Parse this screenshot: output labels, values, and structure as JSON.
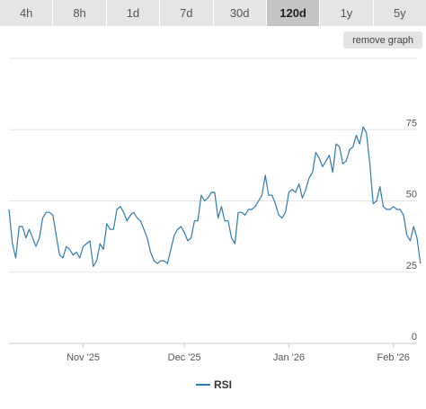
{
  "timeframe_tabs": [
    {
      "label": "4h",
      "active": false
    },
    {
      "label": "8h",
      "active": false
    },
    {
      "label": "1d",
      "active": false
    },
    {
      "label": "7d",
      "active": false
    },
    {
      "label": "30d",
      "active": false
    },
    {
      "label": "120d",
      "active": true
    },
    {
      "label": "1y",
      "active": false
    },
    {
      "label": "5y",
      "active": false
    }
  ],
  "remove_graph_label": "remove graph",
  "colors": {
    "series": "#2f7ab0",
    "grid": "#e6e6e6",
    "axis": "#cccccc"
  },
  "chart_data": {
    "type": "line",
    "ylim": [
      0,
      100
    ],
    "yticks": [
      0,
      25,
      50,
      75
    ],
    "x_range": [
      "2025-10-10",
      "2026-02-08"
    ],
    "xticks": [
      {
        "label": "Nov '25",
        "date": "2025-11-01"
      },
      {
        "label": "Dec '25",
        "date": "2025-12-01"
      },
      {
        "label": "Jan '26",
        "date": "2026-01-01"
      },
      {
        "label": "Feb '26",
        "date": "2026-02-01"
      }
    ],
    "legend": "bottom-center",
    "series": [
      {
        "name": "RSI",
        "points": [
          [
            "2025-10-10",
            47
          ],
          [
            "2025-10-11",
            35
          ],
          [
            "2025-10-12",
            30
          ],
          [
            "2025-10-13",
            41
          ],
          [
            "2025-10-14",
            41
          ],
          [
            "2025-10-15",
            37
          ],
          [
            "2025-10-16",
            40
          ],
          [
            "2025-10-17",
            37
          ],
          [
            "2025-10-18",
            34
          ],
          [
            "2025-10-19",
            37
          ],
          [
            "2025-10-20",
            44
          ],
          [
            "2025-10-21",
            46
          ],
          [
            "2025-10-22",
            46
          ],
          [
            "2025-10-23",
            45
          ],
          [
            "2025-10-24",
            38
          ],
          [
            "2025-10-25",
            31
          ],
          [
            "2025-10-26",
            30
          ],
          [
            "2025-10-27",
            34
          ],
          [
            "2025-10-28",
            33
          ],
          [
            "2025-10-29",
            31
          ],
          [
            "2025-10-30",
            32
          ],
          [
            "2025-10-31",
            30
          ],
          [
            "2025-11-01",
            34
          ],
          [
            "2025-11-02",
            35
          ],
          [
            "2025-11-03",
            36
          ],
          [
            "2025-11-04",
            27
          ],
          [
            "2025-11-05",
            29
          ],
          [
            "2025-11-06",
            35
          ],
          [
            "2025-11-07",
            33
          ],
          [
            "2025-11-08",
            42
          ],
          [
            "2025-11-09",
            40
          ],
          [
            "2025-11-10",
            40
          ],
          [
            "2025-11-11",
            47
          ],
          [
            "2025-11-12",
            48
          ],
          [
            "2025-11-13",
            46
          ],
          [
            "2025-11-14",
            43
          ],
          [
            "2025-11-15",
            45
          ],
          [
            "2025-11-16",
            46
          ],
          [
            "2025-11-17",
            44
          ],
          [
            "2025-11-18",
            43
          ],
          [
            "2025-11-19",
            40
          ],
          [
            "2025-11-20",
            37
          ],
          [
            "2025-11-21",
            32
          ],
          [
            "2025-11-22",
            29
          ],
          [
            "2025-11-23",
            28
          ],
          [
            "2025-11-24",
            29
          ],
          [
            "2025-11-25",
            29
          ],
          [
            "2025-11-26",
            28
          ],
          [
            "2025-11-27",
            33
          ],
          [
            "2025-11-28",
            38
          ],
          [
            "2025-11-29",
            40
          ],
          [
            "2025-11-30",
            41
          ],
          [
            "2025-12-01",
            39
          ],
          [
            "2025-12-02",
            36
          ],
          [
            "2025-12-03",
            37
          ],
          [
            "2025-12-04",
            43
          ],
          [
            "2025-12-05",
            43
          ],
          [
            "2025-12-06",
            52
          ],
          [
            "2025-12-07",
            50
          ],
          [
            "2025-12-08",
            51
          ],
          [
            "2025-12-09",
            53
          ],
          [
            "2025-12-10",
            53
          ],
          [
            "2025-12-11",
            44
          ],
          [
            "2025-12-12",
            48
          ],
          [
            "2025-12-13",
            43
          ],
          [
            "2025-12-14",
            43
          ],
          [
            "2025-12-15",
            37
          ],
          [
            "2025-12-16",
            35
          ],
          [
            "2025-12-17",
            46
          ],
          [
            "2025-12-18",
            46
          ],
          [
            "2025-12-19",
            45
          ],
          [
            "2025-12-20",
            47
          ],
          [
            "2025-12-21",
            47
          ],
          [
            "2025-12-22",
            48
          ],
          [
            "2025-12-23",
            50
          ],
          [
            "2025-12-24",
            52
          ],
          [
            "2025-12-25",
            59
          ],
          [
            "2025-12-26",
            52
          ],
          [
            "2025-12-27",
            52
          ],
          [
            "2025-12-28",
            49
          ],
          [
            "2025-12-29",
            45
          ],
          [
            "2025-12-30",
            44
          ],
          [
            "2025-12-31",
            46
          ],
          [
            "2026-01-01",
            53
          ],
          [
            "2026-01-02",
            54
          ],
          [
            "2026-01-03",
            53
          ],
          [
            "2026-01-04",
            56
          ],
          [
            "2026-01-05",
            51
          ],
          [
            "2026-01-06",
            54
          ],
          [
            "2026-01-07",
            58
          ],
          [
            "2026-01-08",
            60
          ],
          [
            "2026-01-09",
            67
          ],
          [
            "2026-01-10",
            65
          ],
          [
            "2026-01-11",
            62
          ],
          [
            "2026-01-12",
            64
          ],
          [
            "2026-01-13",
            66
          ],
          [
            "2026-01-14",
            60
          ],
          [
            "2026-01-15",
            70
          ],
          [
            "2026-01-16",
            69
          ],
          [
            "2026-01-17",
            63
          ],
          [
            "2026-01-18",
            64
          ],
          [
            "2026-01-19",
            68
          ],
          [
            "2026-01-20",
            69
          ],
          [
            "2026-01-21",
            73
          ],
          [
            "2026-01-22",
            70
          ],
          [
            "2026-01-23",
            76
          ],
          [
            "2026-01-24",
            74
          ],
          [
            "2026-01-25",
            63
          ],
          [
            "2026-01-26",
            49
          ],
          [
            "2026-01-27",
            50
          ],
          [
            "2026-01-28",
            55
          ],
          [
            "2026-01-29",
            48
          ],
          [
            "2026-01-30",
            47
          ],
          [
            "2026-01-31",
            47
          ],
          [
            "2026-02-01",
            48
          ],
          [
            "2026-02-02",
            47
          ],
          [
            "2026-02-03",
            47
          ],
          [
            "2026-02-04",
            45
          ],
          [
            "2026-02-05",
            38
          ],
          [
            "2026-02-06",
            36
          ],
          [
            "2026-02-07",
            41
          ],
          [
            "2026-02-08",
            37
          ],
          [
            "2026-02-09",
            28
          ]
        ]
      }
    ]
  }
}
